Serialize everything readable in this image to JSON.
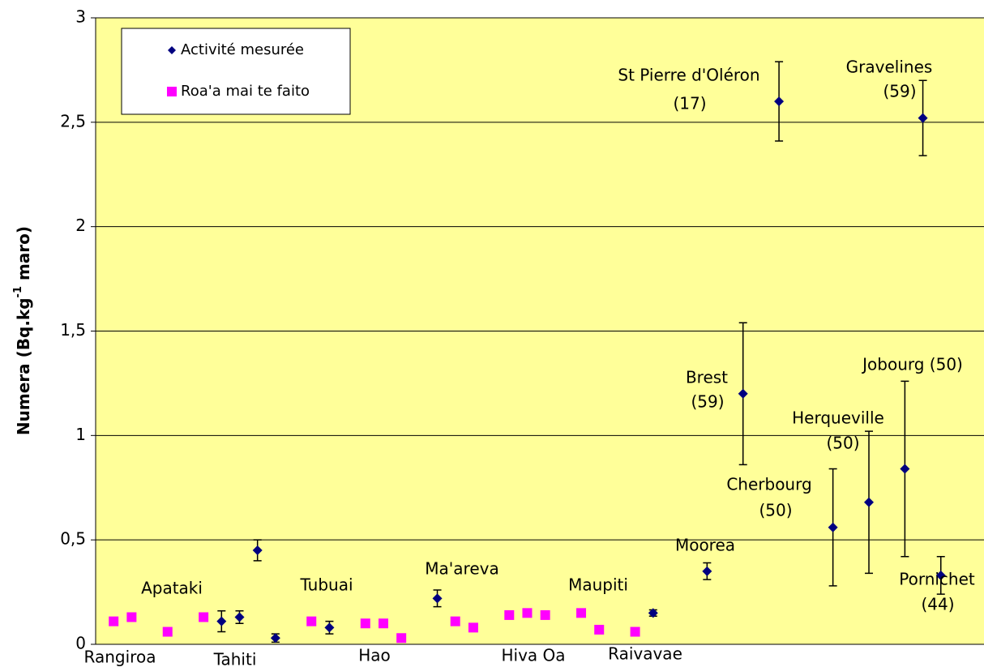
{
  "chart_data": {
    "type": "scatter",
    "y_label": [
      "Numera (Bq.kg",
      "-1",
      " maro)"
    ],
    "xlim": [
      0,
      49.4
    ],
    "ylim": [
      0,
      3
    ],
    "yticks": [
      0,
      {
        "value": 0.5,
        "label": "0,5"
      },
      1,
      {
        "value": 1.5,
        "label": "1,5"
      },
      2,
      {
        "value": 2.5,
        "label": "2,5"
      },
      3
    ],
    "grid": true,
    "legend": "upper left",
    "series": [
      {
        "name": "Activité mesurée",
        "color": "#000080",
        "marker": "diamond",
        "x": [
          7,
          8,
          9,
          10,
          13,
          19,
          31,
          34,
          36,
          38,
          41,
          43,
          45,
          46,
          47
        ],
        "values": [
          0.11,
          0.13,
          0.45,
          0.03,
          0.08,
          0.22,
          0.15,
          0.35,
          1.2,
          2.6,
          0.56,
          0.68,
          0.84,
          2.52,
          0.33
        ],
        "errors": [
          0.05,
          0.03,
          0.05,
          0.02,
          0.03,
          0.04,
          0.015,
          0.04,
          0.34,
          0.19,
          0.28,
          0.34,
          0.42,
          0.18,
          0.09
        ]
      },
      {
        "name": "Roa'a mai te faito",
        "color": "#ff00ff",
        "marker": "square",
        "x": [
          1,
          2,
          4,
          6,
          12,
          15,
          16,
          17,
          20,
          21,
          23,
          24,
          25,
          27,
          28,
          30
        ],
        "values": [
          0.11,
          0.13,
          0.06,
          0.13,
          0.11,
          0.1,
          0.1,
          0.03,
          0.11,
          0.08,
          0.14,
          0.15,
          0.14,
          0.15,
          0.07,
          0.06
        ]
      }
    ],
    "annotations": [
      "Rangiroa",
      "Apataki",
      "Tahiti",
      "Tubuai",
      "Hao",
      "Ma'areva",
      "Hiva Oa",
      "Maupiti",
      "Raivavae",
      "Moorea",
      "Brest",
      "(59)",
      "Cherbourg",
      "(50)",
      "Herqueville",
      "(50)",
      "Jobourg (50)",
      "Pornichet",
      "(44)",
      "St Pierre d'Oléron",
      "(17)",
      "Gravelines",
      "(59)"
    ]
  }
}
